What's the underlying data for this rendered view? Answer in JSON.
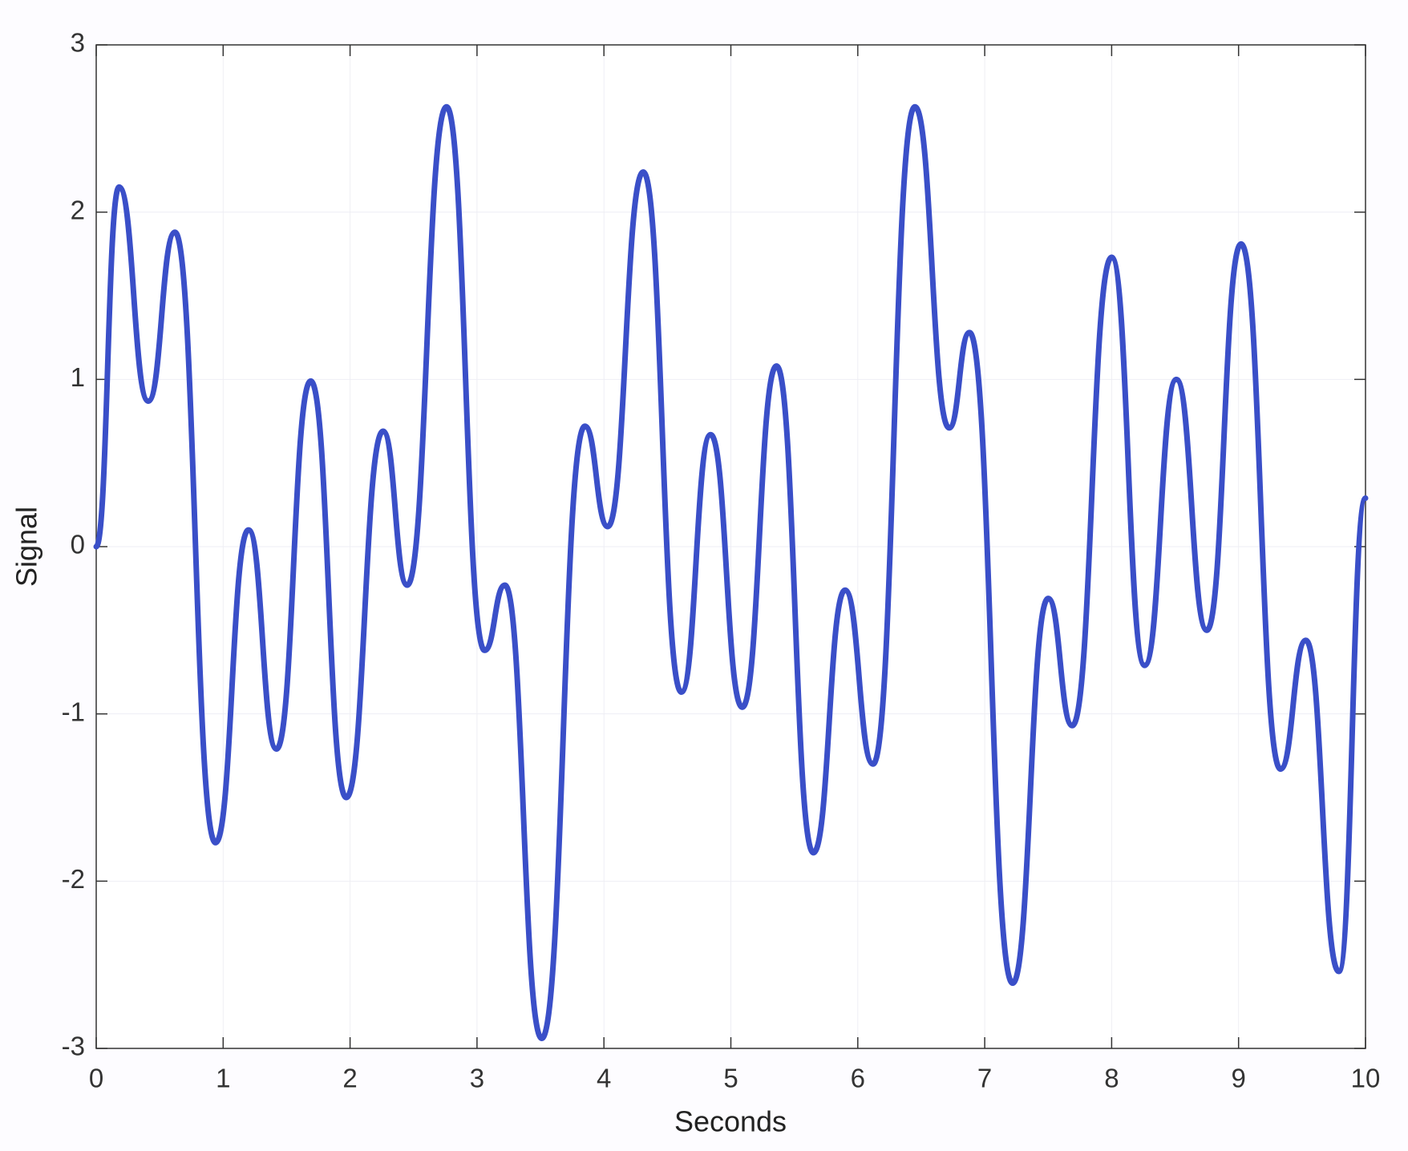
{
  "chart_data": {
    "type": "line",
    "xlabel": "Seconds",
    "ylabel": "Signal",
    "x": [
      0,
      0.18,
      0.41,
      0.62,
      0.94,
      1.2,
      1.42,
      1.69,
      1.97,
      2.26,
      2.45,
      2.76,
      3.06,
      3.22,
      3.51,
      3.85,
      4.03,
      4.31,
      4.61,
      4.84,
      5.09,
      5.36,
      5.65,
      5.9,
      6.12,
      6.45,
      6.72,
      6.88,
      7.22,
      7.5,
      7.69,
      8.0,
      8.26,
      8.51,
      8.75,
      9.02,
      9.33,
      9.53,
      9.79,
      10
    ],
    "series": [
      {
        "color": "#3a4fc8",
        "values": [
          0,
          2.15,
          0.87,
          1.88,
          -1.77,
          0.1,
          -1.21,
          0.99,
          -1.5,
          0.69,
          -0.23,
          2.63,
          -0.62,
          -0.23,
          -2.94,
          0.72,
          0.12,
          2.24,
          -0.87,
          0.67,
          -0.96,
          1.08,
          -1.83,
          -0.26,
          -1.3,
          2.63,
          0.71,
          1.28,
          -2.61,
          -0.31,
          -1.07,
          1.73,
          -0.71,
          1.0,
          -0.5,
          1.81,
          -1.33,
          -0.56,
          -2.54,
          0.29
        ]
      }
    ],
    "xlim": [
      0,
      10
    ],
    "xticks": [
      0,
      1,
      2,
      3,
      4,
      5,
      6,
      7,
      8,
      9,
      10
    ],
    "ylim": [
      -3,
      3
    ],
    "yticks": [
      -3,
      -2,
      -1,
      0,
      1,
      2,
      3
    ],
    "grid": true
  }
}
